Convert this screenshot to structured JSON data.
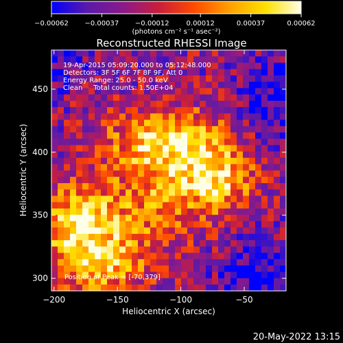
{
  "chart_data": {
    "type": "heatmap",
    "title": "Reconstructed RHESSI Image",
    "xlabel": "Heliocentric X (arcsec)",
    "ylabel": "Heliocentric Y (arcsec)",
    "xlim": [
      -202,
      -17
    ],
    "ylim": [
      290,
      481
    ],
    "x_ticks": [
      -200,
      -150,
      -100,
      -50
    ],
    "x_tick_labels": [
      "−200",
      "−150",
      "−100",
      "−50"
    ],
    "y_ticks": [
      300,
      350,
      400,
      450
    ],
    "y_tick_labels": [
      "300",
      "350",
      "400",
      "450"
    ],
    "colorbar": {
      "min": -0.00062,
      "max": 0.00062,
      "ticks": [
        -0.00062,
        -0.00037,
        -0.00012,
        0.00012,
        0.00037,
        0.00062
      ],
      "tick_labels": [
        "−0.00062",
        "−0.00037",
        "−0.00012",
        "0.00012",
        "0.00037",
        "0.00062"
      ],
      "unit_label": "(photons cm⁻² s⁻¹ asec⁻²)",
      "colors": [
        "#0000ff",
        "#5a1aa8",
        "#8a1a8a",
        "#c81e3c",
        "#ff4a00",
        "#ffa000",
        "#ffe000",
        "#ffffe8"
      ]
    },
    "annotations": [
      "19-Apr-2015 05:09:20.000 to 05:12:48.000",
      "Detectors: 3F 5F 6F 7F 8F 9F, Att 0",
      "Energy Range: 25.0 - 50.0 keV",
      "Clean     Total counts: 1.50E+04"
    ],
    "peak_label": "Position of Peak = [-70,379]",
    "peak": [
      -70,
      379
    ],
    "grid": false
  },
  "timestamp": "20-May-2022 13:15"
}
